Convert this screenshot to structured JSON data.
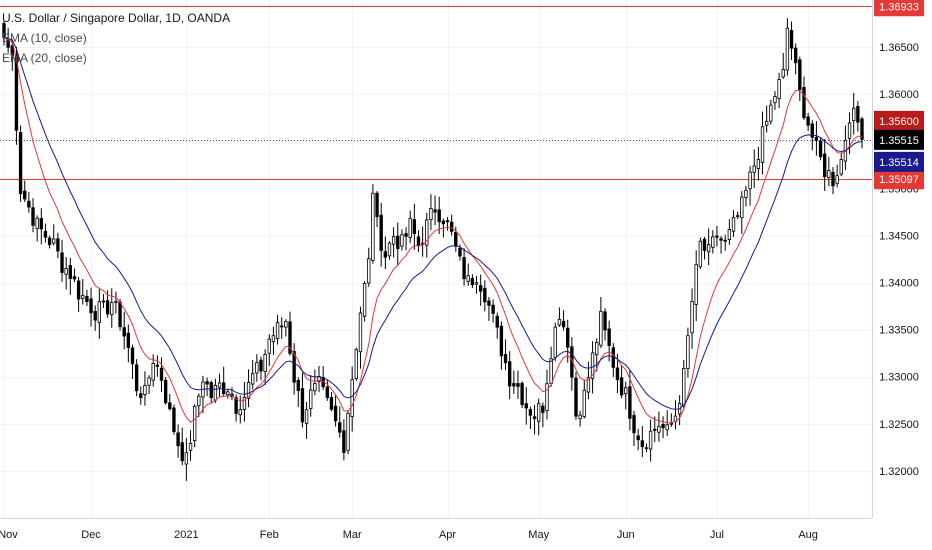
{
  "legend": {
    "title": "U.S. Dollar / Singapore Dollar, 1D, OANDA",
    "ema10": "EMA (10, close)",
    "ema20": "EMA (20, close)"
  },
  "colors": {
    "up": "#ffffff",
    "down": "#000000",
    "ema10": "#e53935",
    "ema20": "#1a1a8c",
    "resistance_line": "#e53935",
    "last_price": "#000000",
    "ema10_label": "#b71c1c",
    "ema20_label": "#1a1a8c"
  },
  "chart_data": {
    "type": "candlestick",
    "symbol": "USDSGD",
    "timeframe": "1D",
    "source": "OANDA",
    "ylim": [
      1.315,
      1.37
    ],
    "y_ticks": [
      "1.36500",
      "1.36000",
      "1.35500",
      "1.35000",
      "1.34500",
      "1.34000",
      "1.33500",
      "1.33000",
      "1.32500",
      "1.32000"
    ],
    "x_ticks": [
      {
        "label": "Nov",
        "index": 0
      },
      {
        "label": "Dec",
        "index": 21
      },
      {
        "label": "2021",
        "index": 44
      },
      {
        "label": "Feb",
        "index": 64
      },
      {
        "label": "Mar",
        "index": 84
      },
      {
        "label": "Apr",
        "index": 107
      },
      {
        "label": "May",
        "index": 129
      },
      {
        "label": "Jun",
        "index": 150
      },
      {
        "label": "Jul",
        "index": 172
      },
      {
        "label": "Aug",
        "index": 194
      }
    ],
    "horizontal_lines": [
      {
        "price": 1.36933,
        "label": "1.36933"
      },
      {
        "price": 1.35097,
        "label": "1.35097"
      }
    ],
    "price_labels": [
      {
        "price": 1.356,
        "label": "1.35600",
        "kind": "ema10"
      },
      {
        "price": 1.35515,
        "label": "1.35515",
        "kind": "last"
      },
      {
        "price": 1.35514,
        "label": "1.35514",
        "kind": "ema20"
      }
    ],
    "close_keypoints": [
      [
        0,
        1.366
      ],
      [
        2,
        1.364
      ],
      [
        4,
        1.35
      ],
      [
        6,
        1.348
      ],
      [
        8,
        1.346
      ],
      [
        10,
        1.345
      ],
      [
        12,
        1.344
      ],
      [
        14,
        1.342
      ],
      [
        16,
        1.341
      ],
      [
        18,
        1.339
      ],
      [
        20,
        1.338
      ],
      [
        22,
        1.337
      ],
      [
        24,
        1.337
      ],
      [
        26,
        1.338
      ],
      [
        28,
        1.336
      ],
      [
        30,
        1.333
      ],
      [
        32,
        1.329
      ],
      [
        34,
        1.328
      ],
      [
        36,
        1.332
      ],
      [
        38,
        1.33
      ],
      [
        40,
        1.326
      ],
      [
        42,
        1.323
      ],
      [
        44,
        1.321
      ],
      [
        46,
        1.326
      ],
      [
        48,
        1.33
      ],
      [
        50,
        1.328
      ],
      [
        52,
        1.329
      ],
      [
        54,
        1.329
      ],
      [
        56,
        1.327
      ],
      [
        58,
        1.328
      ],
      [
        60,
        1.33
      ],
      [
        62,
        1.331
      ],
      [
        64,
        1.334
      ],
      [
        66,
        1.335
      ],
      [
        68,
        1.336
      ],
      [
        70,
        1.33
      ],
      [
        72,
        1.326
      ],
      [
        74,
        1.328
      ],
      [
        76,
        1.329
      ],
      [
        78,
        1.327
      ],
      [
        80,
        1.325
      ],
      [
        82,
        1.323
      ],
      [
        84,
        1.33
      ],
      [
        86,
        1.337
      ],
      [
        88,
        1.342
      ],
      [
        89,
        1.35
      ],
      [
        90,
        1.346
      ],
      [
        92,
        1.343
      ],
      [
        94,
        1.345
      ],
      [
        96,
        1.344
      ],
      [
        98,
        1.346
      ],
      [
        100,
        1.344
      ],
      [
        102,
        1.346
      ],
      [
        104,
        1.348
      ],
      [
        106,
        1.347
      ],
      [
        108,
        1.345
      ],
      [
        110,
        1.342
      ],
      [
        112,
        1.34
      ],
      [
        114,
        1.341
      ],
      [
        116,
        1.339
      ],
      [
        118,
        1.336
      ],
      [
        120,
        1.333
      ],
      [
        122,
        1.33
      ],
      [
        124,
        1.329
      ],
      [
        126,
        1.327
      ],
      [
        128,
        1.326
      ],
      [
        130,
        1.327
      ],
      [
        132,
        1.333
      ],
      [
        134,
        1.337
      ],
      [
        136,
        1.334
      ],
      [
        138,
        1.326
      ],
      [
        140,
        1.328
      ],
      [
        142,
        1.332
      ],
      [
        144,
        1.336
      ],
      [
        146,
        1.333
      ],
      [
        148,
        1.33
      ],
      [
        150,
        1.328
      ],
      [
        152,
        1.325
      ],
      [
        154,
        1.323
      ],
      [
        156,
        1.324
      ],
      [
        158,
        1.325
      ],
      [
        160,
        1.324
      ],
      [
        162,
        1.326
      ],
      [
        164,
        1.33
      ],
      [
        166,
        1.338
      ],
      [
        168,
        1.344
      ],
      [
        170,
        1.343
      ],
      [
        172,
        1.345
      ],
      [
        174,
        1.344
      ],
      [
        176,
        1.346
      ],
      [
        178,
        1.348
      ],
      [
        180,
        1.351
      ],
      [
        182,
        1.354
      ],
      [
        184,
        1.357
      ],
      [
        186,
        1.36
      ],
      [
        188,
        1.362
      ],
      [
        189,
        1.367
      ],
      [
        190,
        1.365
      ],
      [
        192,
        1.36
      ],
      [
        194,
        1.357
      ],
      [
        196,
        1.354
      ],
      [
        198,
        1.352
      ],
      [
        200,
        1.351
      ],
      [
        202,
        1.353
      ],
      [
        204,
        1.358
      ],
      [
        206,
        1.357
      ],
      [
        207,
        1.3552
      ]
    ]
  }
}
